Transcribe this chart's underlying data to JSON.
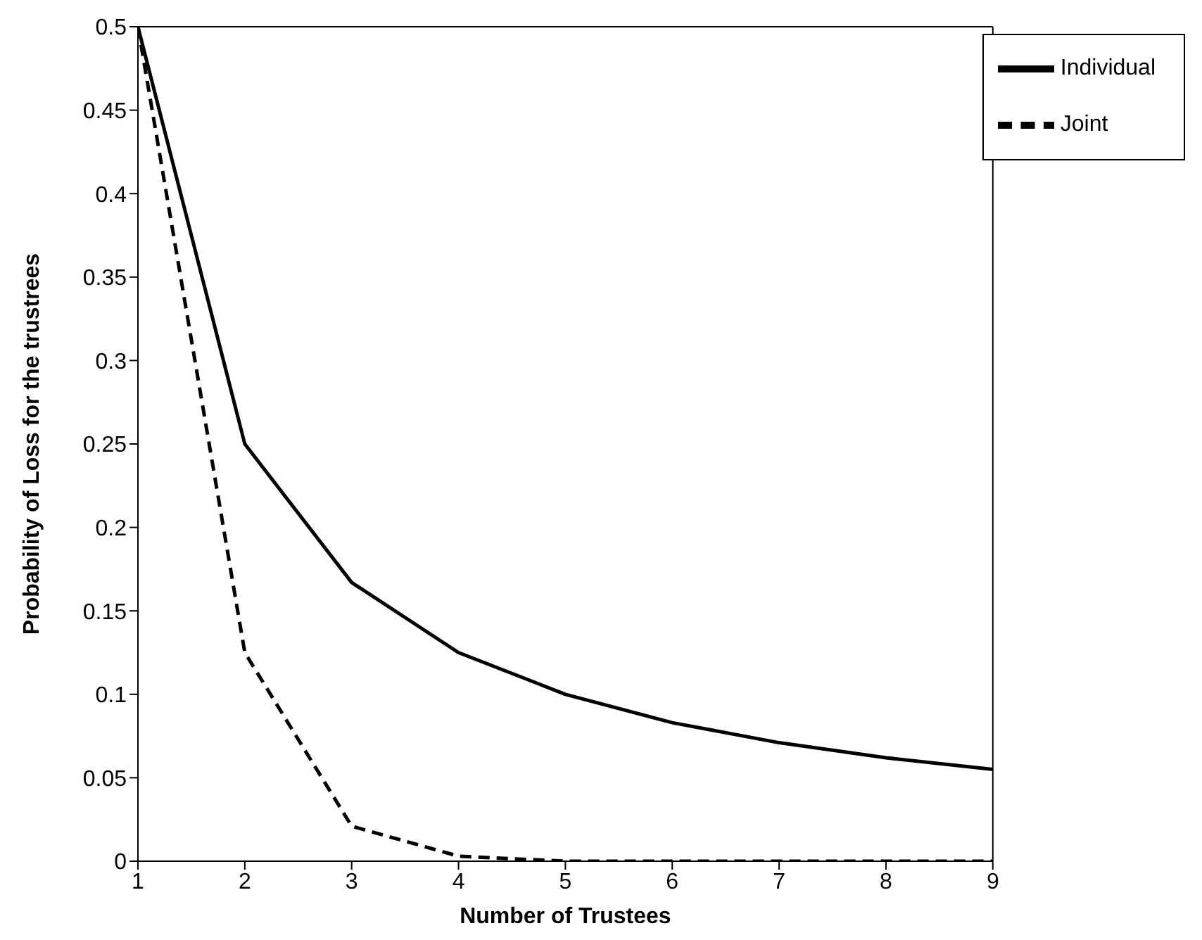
{
  "chart_data": {
    "type": "line",
    "xlabel": "Number of Trustees",
    "ylabel": "Probability of Loss for the trustrees",
    "x": [
      1,
      2,
      3,
      4,
      5,
      6,
      7,
      8,
      9
    ],
    "series": [
      {
        "name": "Individual",
        "color": "#000000",
        "line_style": "solid",
        "values": [
          0.5,
          0.25,
          0.167,
          0.125,
          0.1,
          0.083,
          0.071,
          0.062,
          0.055
        ]
      },
      {
        "name": "Joint",
        "color": "#000000",
        "line_style": "dashed",
        "values": [
          0.5,
          0.125,
          0.021,
          0.003,
          0,
          0,
          0,
          0,
          0
        ]
      }
    ],
    "xlim": [
      1,
      9
    ],
    "xticks": [
      1,
      2,
      3,
      4,
      5,
      6,
      7,
      8,
      9
    ],
    "ylim": [
      0,
      0.5
    ],
    "yticks": [
      0,
      0.05,
      0.1,
      0.15,
      0.2,
      0.25,
      0.3,
      0.35,
      0.4,
      0.45,
      0.5
    ],
    "grid": false,
    "legend": "top right",
    "marker": "none"
  }
}
